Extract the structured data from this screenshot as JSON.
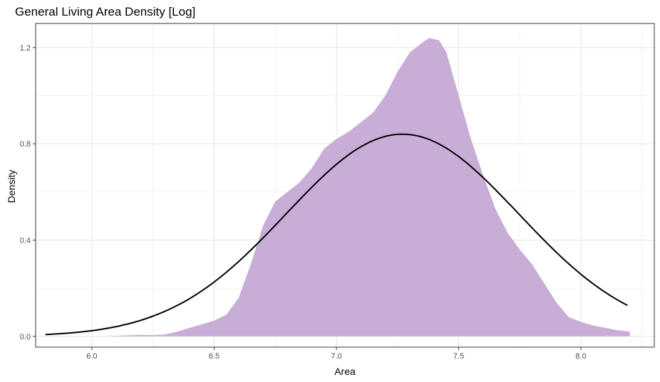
{
  "chart_data": {
    "type": "area",
    "title": "General Living Area Density [Log]",
    "xlabel": "Area",
    "ylabel": "Density",
    "xlim": [
      5.77,
      8.3
    ],
    "ylim": [
      -0.045,
      1.3
    ],
    "x_ticks": [
      6.0,
      6.5,
      7.0,
      7.5,
      8.0
    ],
    "y_ticks": [
      0.0,
      0.4,
      0.8,
      1.2
    ],
    "x_tick_labels": [
      "6.0",
      "6.5",
      "7.0",
      "7.5",
      "8.0"
    ],
    "y_tick_labels": [
      "0.0",
      "0.4",
      "0.8",
      "1.2"
    ],
    "grid": true,
    "legend": "none",
    "series": [
      {
        "kind": "density-area",
        "color": "#c8aed7",
        "x": [
          6.06,
          6.1,
          6.15,
          6.2,
          6.25,
          6.3,
          6.35,
          6.4,
          6.45,
          6.5,
          6.55,
          6.6,
          6.65,
          6.7,
          6.75,
          6.8,
          6.85,
          6.9,
          6.95,
          7.0,
          7.05,
          7.1,
          7.15,
          7.2,
          7.25,
          7.3,
          7.35,
          7.38,
          7.42,
          7.45,
          7.5,
          7.55,
          7.6,
          7.65,
          7.7,
          7.75,
          7.8,
          7.85,
          7.9,
          7.95,
          8.0,
          8.05,
          8.1,
          8.15,
          8.2
        ],
        "y": [
          0.0,
          0.002,
          0.004,
          0.006,
          0.005,
          0.008,
          0.02,
          0.035,
          0.05,
          0.065,
          0.09,
          0.16,
          0.3,
          0.46,
          0.56,
          0.6,
          0.64,
          0.7,
          0.78,
          0.82,
          0.85,
          0.89,
          0.93,
          1.0,
          1.1,
          1.18,
          1.22,
          1.24,
          1.23,
          1.18,
          1.0,
          0.82,
          0.67,
          0.53,
          0.43,
          0.36,
          0.3,
          0.22,
          0.14,
          0.08,
          0.06,
          0.045,
          0.035,
          0.025,
          0.02
        ]
      },
      {
        "kind": "normal-curve",
        "color": "#000000",
        "mean": 7.27,
        "sd": 0.475,
        "x_range": [
          5.81,
          8.19
        ]
      }
    ]
  }
}
